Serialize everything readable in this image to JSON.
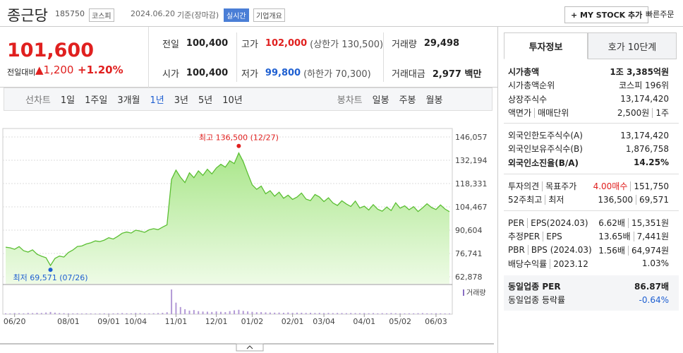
{
  "header": {
    "name": "종근당",
    "code": "185750",
    "market": "코스피",
    "date": "2024.06.20",
    "basis": "기준(장마감)",
    "realtime": "실시간",
    "overview": "기업개요",
    "my_stock": "+ MY STOCK 추가",
    "quick_order": "빠른주문"
  },
  "quote": {
    "price": "101,600",
    "change_label": "전일대비",
    "change": "▲1,200",
    "change_pct": "+1.20%",
    "cells": [
      {
        "label": "전일",
        "value": "100,400"
      },
      {
        "label": "고가",
        "value": "102,000",
        "note": "(상한가 130,500)"
      },
      {
        "label": "거래량",
        "value": "29,498"
      },
      {
        "label": "시가",
        "value": "100,400"
      },
      {
        "label": "저가",
        "value": "99,800",
        "note": "(하한가 70,300)"
      },
      {
        "label": "거래대금",
        "value": "2,977 백만"
      }
    ]
  },
  "periods": {
    "line_label": "선차트",
    "line": [
      "1일",
      "1주일",
      "3개월",
      "1년",
      "3년",
      "5년",
      "10년"
    ],
    "selected_period": 3,
    "candle_label": "봉차트",
    "candle": [
      "일봉",
      "주봉",
      "월봉"
    ]
  },
  "chart": {
    "ylim": [
      62878,
      146057
    ],
    "yticks": [
      {
        "value": 146057,
        "label": "146,057"
      },
      {
        "value": 132194,
        "label": "132,194"
      },
      {
        "value": 118331,
        "label": "118,331"
      },
      {
        "value": 104467,
        "label": "104,467"
      },
      {
        "value": 90604,
        "label": "90,604"
      },
      {
        "value": 76741,
        "label": "76,741"
      },
      {
        "value": 62878,
        "label": "62,878"
      }
    ],
    "high": "최고 136,500 (12/27)",
    "low": "최저 69,571 (07/26)",
    "volume_label": "거래량",
    "dates": [
      null,
      null,
      "06/20",
      null,
      null,
      null,
      null,
      null,
      null,
      null,
      null,
      null,
      null,
      null,
      "08/01",
      null,
      null,
      null,
      null,
      null,
      null,
      null,
      null,
      "09/01",
      null,
      null,
      null,
      null,
      null,
      "10/04",
      null,
      null,
      null,
      null,
      null,
      null,
      null,
      null,
      "11/01",
      null,
      null,
      null,
      null,
      null,
      null,
      null,
      null,
      "12/01",
      null,
      null,
      null,
      null,
      null,
      null,
      null,
      "01/02",
      null,
      null,
      null,
      null,
      null,
      null,
      null,
      null,
      "02/01",
      null,
      null,
      null,
      null,
      null,
      null,
      "03/04",
      null,
      null,
      null,
      null,
      null,
      null,
      null,
      null,
      "04/01",
      null,
      null,
      null,
      null,
      null,
      null,
      null,
      "05/02",
      null,
      null,
      null,
      null,
      null,
      null,
      null,
      "06/03",
      null,
      null,
      null
    ],
    "prices": [
      80500,
      80100,
      79200,
      80800,
      78400,
      77600,
      78900,
      76300,
      75100,
      74200,
      69571,
      73800,
      75200,
      74600,
      77300,
      78800,
      80900,
      81200,
      82400,
      83100,
      84200,
      83800,
      84700,
      86100,
      85300,
      86900,
      88800,
      89500,
      88900,
      90600,
      90100,
      89300,
      90800,
      91500,
      90900,
      92400,
      93800,
      120800,
      126300,
      122100,
      118900,
      124700,
      121800,
      125900,
      123200,
      126800,
      124100,
      127600,
      129800,
      128100,
      131900,
      130200,
      136500,
      131400,
      124300,
      117600,
      114900,
      116800,
      112300,
      114100,
      110800,
      113200,
      109600,
      111400,
      108900,
      110300,
      112700,
      109100,
      108200,
      111800,
      110400,
      107600,
      109900,
      106800,
      105300,
      108100,
      106200,
      104700,
      107900,
      103800,
      104900,
      102600,
      105800,
      103100,
      101900,
      104400,
      102300,
      106900,
      103700,
      105100,
      102800,
      104600,
      101700,
      103900,
      106300,
      104100,
      102900,
      105600,
      103200,
      101600
    ],
    "volumes": [
      30,
      25,
      40,
      35,
      28,
      45,
      38,
      50,
      42,
      60,
      80,
      55,
      40,
      35,
      30,
      28,
      32,
      25,
      30,
      27,
      22,
      26,
      30,
      24,
      28,
      35,
      40,
      33,
      30,
      45,
      38,
      30,
      28,
      35,
      40,
      48,
      70,
      900,
      420,
      260,
      180,
      130,
      150,
      110,
      95,
      90,
      80,
      100,
      85,
      75,
      110,
      140,
      160,
      120,
      100,
      85,
      70,
      75,
      65,
      60,
      55,
      58,
      50,
      62,
      48,
      55,
      52,
      45,
      50,
      42,
      48,
      40,
      45,
      38,
      44,
      40,
      36,
      42,
      38,
      35,
      40,
      33,
      38,
      30,
      36,
      32,
      40,
      34,
      30,
      28,
      32,
      30,
      35,
      38,
      30,
      27,
      33,
      29,
      25,
      24
    ]
  },
  "panel": {
    "tabs": [
      "투자정보",
      "호가 10단계"
    ],
    "groups": [
      [
        {
          "label": [
            "시가총액"
          ],
          "value": [
            "1조 3,385억원"
          ]
        },
        {
          "label": [
            "시가총액순위"
          ],
          "value": [
            "코스피 196위"
          ]
        },
        {
          "label": [
            "상장주식수"
          ],
          "value": [
            "13,174,420"
          ]
        },
        {
          "label": [
            "액면가",
            "매매단위"
          ],
          "value": [
            "2,500원",
            "1주"
          ]
        }
      ],
      [
        {
          "label": [
            "외국인한도주식수(A)"
          ],
          "value": [
            "13,174,420"
          ]
        },
        {
          "label": [
            "외국인보유주식수(B)"
          ],
          "value": [
            "1,876,758"
          ]
        },
        {
          "label": [
            "외국인소진율(B/A)"
          ],
          "value": [
            "14.25%"
          ]
        }
      ],
      [
        {
          "label": [
            "투자의견",
            "목표주가"
          ],
          "value": [
            "4.00매수",
            "151,750"
          ]
        },
        {
          "label": [
            "52주최고",
            "최저"
          ],
          "value": [
            "136,500",
            "69,571"
          ]
        }
      ],
      [
        {
          "label": [
            "PER",
            "EPS(2024.03)"
          ],
          "value": [
            "6.62배",
            "15,351원"
          ]
        },
        {
          "label": [
            "추정PER",
            "EPS"
          ],
          "value": [
            "13.65배",
            "7,441원"
          ]
        },
        {
          "label": [
            "PBR",
            "BPS (2024.03)"
          ],
          "value": [
            "1.56배",
            "64,974원"
          ]
        },
        {
          "label": [
            "배당수익률",
            "2023.12"
          ],
          "value": [
            "1.03%"
          ]
        }
      ],
      [
        {
          "label": [
            "동일업종 PER"
          ],
          "value": [
            "86.87배"
          ]
        },
        {
          "label": [
            "동일업종 등락률"
          ],
          "value": [
            "-0.64%"
          ]
        }
      ]
    ]
  }
}
